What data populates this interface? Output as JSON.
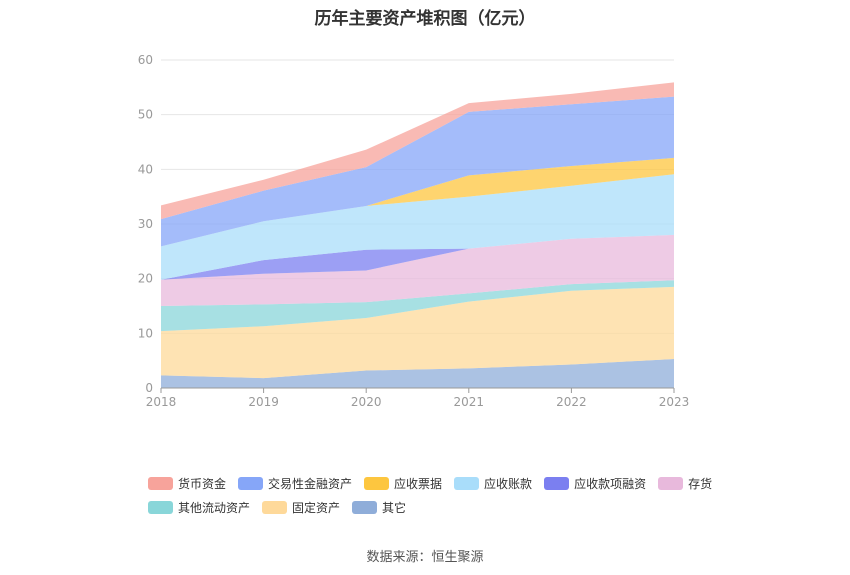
{
  "title": "历年主要资产堆积图（亿元）",
  "source": "数据来源：恒生聚源",
  "chart_data": {
    "type": "area",
    "stacked": true,
    "categories": [
      "2018",
      "2019",
      "2020",
      "2021",
      "2022",
      "2023"
    ],
    "ylim": [
      0,
      60
    ],
    "yticks": [
      0,
      10,
      20,
      30,
      40,
      50,
      60
    ],
    "grid": true,
    "legend_position": "bottom",
    "series": [
      {
        "name": "其它",
        "color": "#8fadd9",
        "values": [
          2.3,
          1.8,
          3.2,
          3.6,
          4.3,
          5.3
        ]
      },
      {
        "name": "固定资产",
        "color": "#fed99a",
        "values": [
          8.1,
          9.5,
          9.6,
          12.2,
          13.5,
          13.2
        ]
      },
      {
        "name": "其他流动资产",
        "color": "#89d6d9",
        "values": [
          4.6,
          4.0,
          2.9,
          1.5,
          1.2,
          1.2
        ]
      },
      {
        "name": "存货",
        "color": "#e8b9dc",
        "values": [
          4.8,
          5.6,
          5.8,
          8.2,
          8.3,
          8.3
        ]
      },
      {
        "name": "应收款项融资",
        "color": "#7b7ff0",
        "values": [
          0.0,
          2.5,
          3.8,
          0.0,
          0.0,
          0.0
        ]
      },
      {
        "name": "应收账款",
        "color": "#a9ddfa",
        "values": [
          6.1,
          7.1,
          8.0,
          9.5,
          9.7,
          11.1
        ]
      },
      {
        "name": "应收票据",
        "color": "#fdc63f",
        "values": [
          0.0,
          0.0,
          0.0,
          3.9,
          3.6,
          3.0
        ]
      },
      {
        "name": "交易性金融资产",
        "color": "#86a6f8",
        "values": [
          5.0,
          5.6,
          7.1,
          11.6,
          11.3,
          11.2
        ]
      },
      {
        "name": "货币资金",
        "color": "#f7a39b",
        "values": [
          2.5,
          2.0,
          3.2,
          1.6,
          1.9,
          2.6
        ]
      }
    ]
  },
  "legend_order": [
    "货币资金",
    "交易性金融资产",
    "应收票据",
    "应收账款",
    "应收款项融资",
    "存货",
    "其他流动资产",
    "固定资产",
    "其它"
  ]
}
